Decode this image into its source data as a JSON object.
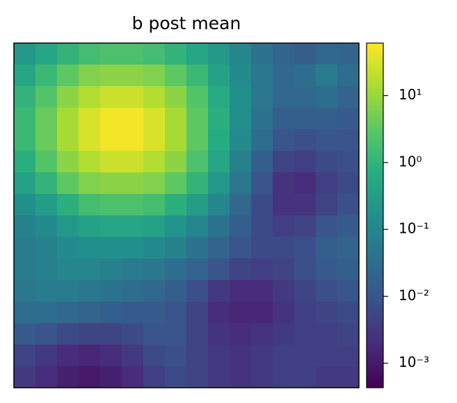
{
  "chart_data": {
    "type": "heatmap",
    "title": "b post mean",
    "colormap": "viridis",
    "log_scale": true,
    "clim": [
      0.00043,
      61
    ],
    "colorbar_ticks": [
      {
        "value": 0.001,
        "label": "10⁻³"
      },
      {
        "value": 0.01,
        "label": "10⁻²"
      },
      {
        "value": 0.1,
        "label": "10⁻¹"
      },
      {
        "value": 1,
        "label": "10⁰"
      },
      {
        "value": 10,
        "label": "10¹"
      }
    ],
    "z": [
      [
        0.25,
        0.5,
        1,
        1.6,
        2,
        2,
        1.6,
        1,
        0.5,
        0.25,
        0.1,
        0.04,
        0.02,
        0.016,
        0.025,
        0.02
      ],
      [
        0.5,
        1.3,
        3.2,
        6.3,
        7.9,
        7.9,
        6.3,
        3.2,
        1.3,
        0.4,
        0.13,
        0.05,
        0.025,
        0.032,
        0.063,
        0.032
      ],
      [
        1,
        2.5,
        7.9,
        16,
        25,
        25,
        16,
        7.9,
        2.5,
        0.63,
        0.16,
        0.05,
        0.025,
        0.025,
        0.032,
        0.02
      ],
      [
        1.3,
        4,
        13,
        32,
        50,
        50,
        32,
        13,
        3.2,
        0.79,
        0.16,
        0.04,
        0.016,
        0.016,
        0.016,
        0.013
      ],
      [
        1.3,
        4,
        13,
        32,
        50,
        50,
        32,
        13,
        3.2,
        0.63,
        0.13,
        0.032,
        0.01,
        0.0079,
        0.01,
        0.01
      ],
      [
        0.79,
        2.5,
        7.9,
        16,
        25,
        25,
        16,
        7.9,
        2,
        0.5,
        0.079,
        0.016,
        0.005,
        0.004,
        0.0063,
        0.0079
      ],
      [
        0.4,
        1,
        3.2,
        6.3,
        7.9,
        7.9,
        6.3,
        3.2,
        1,
        0.25,
        0.05,
        0.01,
        0.0025,
        0.002,
        0.004,
        0.0063
      ],
      [
        0.16,
        0.32,
        0.79,
        1.6,
        2,
        2,
        1.6,
        0.79,
        0.32,
        0.1,
        0.025,
        0.0063,
        0.0025,
        0.0025,
        0.005,
        0.0079
      ],
      [
        0.079,
        0.13,
        0.25,
        0.4,
        0.5,
        0.5,
        0.4,
        0.2,
        0.1,
        0.04,
        0.016,
        0.0063,
        0.004,
        0.005,
        0.01,
        0.013
      ],
      [
        0.063,
        0.079,
        0.13,
        0.16,
        0.16,
        0.16,
        0.13,
        0.079,
        0.04,
        0.02,
        0.01,
        0.0063,
        0.0063,
        0.0079,
        0.016,
        0.02
      ],
      [
        0.063,
        0.079,
        0.1,
        0.1,
        0.079,
        0.063,
        0.05,
        0.032,
        0.02,
        0.01,
        0.005,
        0.004,
        0.005,
        0.0079,
        0.013,
        0.016
      ],
      [
        0.05,
        0.063,
        0.063,
        0.05,
        0.04,
        0.032,
        0.025,
        0.016,
        0.0079,
        0.0032,
        0.002,
        0.002,
        0.0032,
        0.005,
        0.0079,
        0.01
      ],
      [
        0.032,
        0.032,
        0.025,
        0.02,
        0.016,
        0.013,
        0.013,
        0.01,
        0.005,
        0.002,
        0.0016,
        0.0016,
        0.0025,
        0.004,
        0.005,
        0.0063
      ],
      [
        0.013,
        0.01,
        0.0063,
        0.005,
        0.005,
        0.0063,
        0.01,
        0.01,
        0.005,
        0.0025,
        0.002,
        0.0025,
        0.0032,
        0.004,
        0.004,
        0.005
      ],
      [
        0.005,
        0.0032,
        0.002,
        0.0016,
        0.002,
        0.0032,
        0.0063,
        0.0079,
        0.005,
        0.0032,
        0.0025,
        0.0032,
        0.004,
        0.004,
        0.004,
        0.004
      ],
      [
        0.0032,
        0.002,
        0.0013,
        0.001,
        0.0013,
        0.002,
        0.004,
        0.0063,
        0.005,
        0.0032,
        0.0025,
        0.0032,
        0.004,
        0.004,
        0.0032,
        0.0032
      ]
    ]
  }
}
